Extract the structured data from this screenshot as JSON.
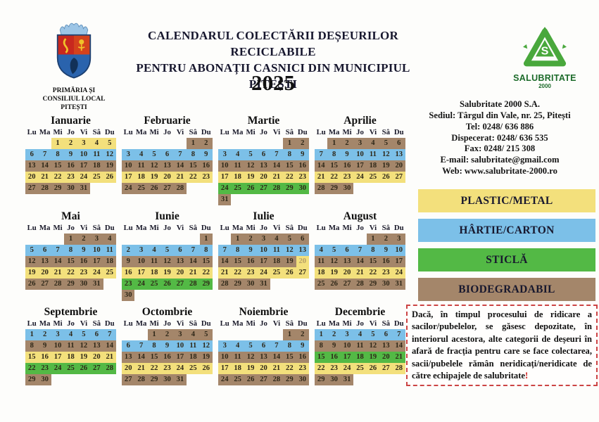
{
  "header": {
    "title_line1": "CALENDARUL COLECTĂRII DEȘEURILOR RECICLABILE",
    "title_line2": "PENTRU ABONAȚII CASNICI DIN MUNICIPIUL PITEȘTI",
    "year": "2025",
    "left_logo_caption_lines": [
      "PRIMĂRIA ȘI",
      "CONSILIUL LOCAL",
      "PITEȘTI"
    ],
    "right_logo_name": "SALUBRITATE",
    "right_logo_sub": "2000"
  },
  "contact": {
    "lines": [
      "Salubritate 2000 S.A.",
      "Sediul: Târgul din Vale, nr. 25, Pitești",
      "Tel: 0248/ 636 886",
      "Dispecerat: 0248/ 636 535",
      "Fax: 0248/ 215 308",
      "E-mail: salubritate@gmail.com",
      "Web: www.salubritate-2000.ro"
    ]
  },
  "legend": {
    "items": [
      {
        "label": "PLASTIC/METAL",
        "color": "yellow"
      },
      {
        "label": "HÂRTIE/CARTON",
        "color": "blue"
      },
      {
        "label": "STICLĂ",
        "color": "green"
      },
      {
        "label": "BIODEGRADABIL",
        "color": "brown"
      }
    ]
  },
  "note": {
    "text": "Dacă, în timpul procesului de ridicare a sacilor/pubelelor, se găsesc depozitate, în interiorul acestora, alte categorii de deșeuri în afară de fracția pentru care se face colectarea, sacii/pubelele rămân neridicați/neridicate de către echipajele de salubritate",
    "exclamation": "!"
  },
  "colors": {
    "yellow": "#F3E07C",
    "blue": "#7CC0E8",
    "green": "#53B945",
    "brown": "#A4866A"
  },
  "calendar": {
    "day_headers": [
      "Lu",
      "Ma",
      "Mi",
      "Jo",
      "Vi",
      "Sâ",
      "Du"
    ],
    "months": [
      {
        "name": "Ianuarie",
        "start": 2,
        "days": 31,
        "week_colors": [
          "yellow",
          "blue",
          "brown",
          "yellow",
          "brown"
        ]
      },
      {
        "name": "Februarie",
        "start": 5,
        "days": 28,
        "week_colors": [
          "brown",
          "blue",
          "brown",
          "yellow",
          "brown"
        ]
      },
      {
        "name": "Martie",
        "start": 5,
        "days": 31,
        "week_colors": [
          "brown",
          "blue",
          "brown",
          "yellow",
          "green",
          "brown"
        ]
      },
      {
        "name": "Aprilie",
        "start": 1,
        "days": 30,
        "week_colors": [
          "brown",
          "blue",
          "brown",
          "yellow",
          "brown"
        ]
      },
      {
        "name": "Mai",
        "start": 3,
        "days": 31,
        "week_colors": [
          "brown",
          "blue",
          "brown",
          "yellow",
          "brown"
        ]
      },
      {
        "name": "Iunie",
        "start": 6,
        "days": 30,
        "week_colors": [
          "brown",
          "blue",
          "brown",
          "yellow",
          "green",
          "brown"
        ]
      },
      {
        "name": "Iulie",
        "start": 1,
        "days": 31,
        "week_colors": [
          "brown",
          "blue",
          "brown",
          "yellow",
          "brown"
        ],
        "overrides": {
          "20": "yellow"
        }
      },
      {
        "name": "August",
        "start": 4,
        "days": 31,
        "week_colors": [
          "brown",
          "blue",
          "brown",
          "yellow",
          "brown"
        ]
      },
      {
        "name": "Septembrie",
        "start": 0,
        "days": 30,
        "week_colors": [
          "blue",
          "brown",
          "yellow",
          "green",
          "brown"
        ]
      },
      {
        "name": "Octombrie",
        "start": 2,
        "days": 31,
        "week_colors": [
          "brown",
          "blue",
          "brown",
          "yellow",
          "brown"
        ]
      },
      {
        "name": "Noiembrie",
        "start": 5,
        "days": 30,
        "week_colors": [
          "brown",
          "blue",
          "brown",
          "yellow",
          "brown"
        ]
      },
      {
        "name": "Decembrie",
        "start": 0,
        "days": 31,
        "week_colors": [
          "blue",
          "brown",
          "green",
          "yellow",
          "brown"
        ]
      }
    ]
  }
}
